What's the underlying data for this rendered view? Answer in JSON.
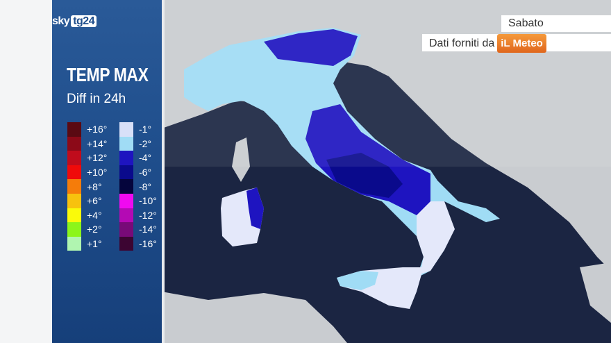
{
  "brand": {
    "sky": "sky",
    "tg": "tg24"
  },
  "header": {
    "title": "TEMP MAX",
    "subtitle": "Diff in 24h"
  },
  "day": "Sabato",
  "credit": {
    "text": "Dati forniti da",
    "provider_logo": "iLMeteo"
  },
  "legend": {
    "positive": [
      {
        "label": "+16°",
        "color": "#5a0a12"
      },
      {
        "label": "+14°",
        "color": "#8c0a18"
      },
      {
        "label": "+12°",
        "color": "#c00c1c"
      },
      {
        "label": "+10°",
        "color": "#f00a0a"
      },
      {
        "label": "+8°",
        "color": "#f57c0a"
      },
      {
        "label": "+6°",
        "color": "#f7c20e"
      },
      {
        "label": "+4°",
        "color": "#fafa0a"
      },
      {
        "label": "+2°",
        "color": "#8cf51a"
      },
      {
        "label": "+1°",
        "color": "#b0f5b0"
      }
    ],
    "negative": [
      {
        "label": "-1°",
        "color": "#d8e0f8"
      },
      {
        "label": "-2°",
        "color": "#a0dcf5"
      },
      {
        "label": "-4°",
        "color": "#1e14c0"
      },
      {
        "label": "-6°",
        "color": "#0a0a8c"
      },
      {
        "label": "-8°",
        "color": "#05053c"
      },
      {
        "label": "-10°",
        "color": "#f00af0"
      },
      {
        "label": "-12°",
        "color": "#b40ab4"
      },
      {
        "label": "-14°",
        "color": "#780a78"
      },
      {
        "label": "-16°",
        "color": "#3c0532"
      }
    ]
  },
  "colors": {
    "sea": "#1b2542",
    "land": "#c9ccd0",
    "panel": "#1f4e8c"
  }
}
